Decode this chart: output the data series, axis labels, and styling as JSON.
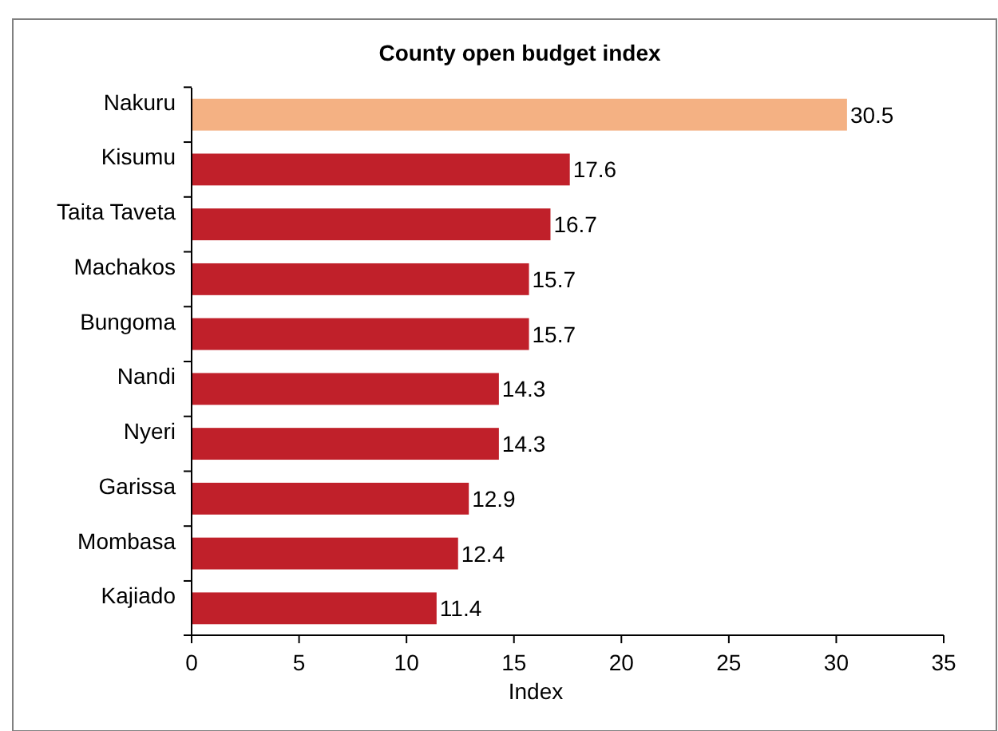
{
  "chart_data": {
    "type": "bar",
    "orientation": "horizontal",
    "title": "County open budget index",
    "xlabel": "Index",
    "categories": [
      "Nakuru",
      "Kisumu",
      "Taita Taveta",
      "Machakos",
      "Bungoma",
      "Nandi",
      "Nyeri",
      "Garissa",
      "Mombasa",
      "Kajiado"
    ],
    "values": [
      30.5,
      17.6,
      16.7,
      15.7,
      15.7,
      14.3,
      14.3,
      12.9,
      12.4,
      11.4
    ],
    "colors": [
      "#f4b183",
      "#c0202a",
      "#c0202a",
      "#c0202a",
      "#c0202a",
      "#c0202a",
      "#c0202a",
      "#c0202a",
      "#c0202a",
      "#c0202a"
    ],
    "xlim": [
      0,
      35
    ],
    "xticks": [
      0,
      5,
      10,
      15,
      20,
      25,
      30,
      35
    ],
    "data_labels": true
  }
}
